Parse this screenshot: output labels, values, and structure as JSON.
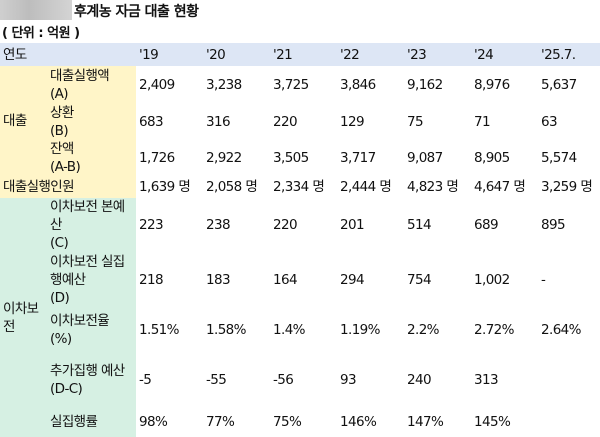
{
  "title": "후계농 자금 대출 현황",
  "unit": "( 단위 : 억원 )",
  "header": {
    "label": "연도",
    "years": [
      "'19",
      "'20",
      "'21",
      "'22",
      "'23",
      "'24",
      "'25.7."
    ]
  },
  "loan_group": {
    "label": "대출",
    "rows": [
      {
        "label": "대출실행액",
        "code": "(A)",
        "values": [
          "2,409",
          "3,238",
          "3,725",
          "3,846",
          "9,162",
          "8,976",
          "5,637"
        ]
      },
      {
        "label": "상환",
        "code": "(B)",
        "values": [
          "683",
          "316",
          "220",
          "129",
          "75",
          "71",
          "63"
        ]
      },
      {
        "label": "잔액",
        "code": "(A-B)",
        "values": [
          "1,726",
          "2,922",
          "3,505",
          "3,717",
          "9,087",
          "8,905",
          "5,574"
        ]
      }
    ]
  },
  "people_row": {
    "label": "대출실행인원",
    "values": [
      "1,639 명",
      "2,058 명",
      "2,334 명",
      "2,444 명",
      "4,823 명",
      "4,647 명",
      "3,259 명"
    ]
  },
  "interest_group": {
    "label": "이차보전",
    "rows": [
      {
        "label": "이차보전 본예산",
        "code": "(C)",
        "values": [
          "223",
          "238",
          "220",
          "201",
          "514",
          "689",
          "895"
        ]
      },
      {
        "label": "이차보전 실집행예산",
        "code": "(D)",
        "values": [
          "218",
          "183",
          "164",
          "294",
          "754",
          "1,002",
          "-"
        ]
      },
      {
        "label": "이차보전율",
        "code": "(%)",
        "values": [
          "1.51%",
          "1.58%",
          "1.4%",
          "1.19%",
          "2.2%",
          "2.72%",
          "2.64%"
        ]
      },
      {
        "label": "추가집행 예산",
        "code": "(D-C)",
        "values": [
          "-5",
          "-55",
          "-56",
          "93",
          "240",
          "313",
          ""
        ]
      },
      {
        "label": "실집행률",
        "code": "",
        "values": [
          "98%",
          "77%",
          "75%",
          "146%",
          "147%",
          "145%",
          ""
        ]
      }
    ]
  },
  "colors": {
    "header": "#dde6f5",
    "loan": "#fff5c8",
    "interest": "#d6f0e3"
  }
}
